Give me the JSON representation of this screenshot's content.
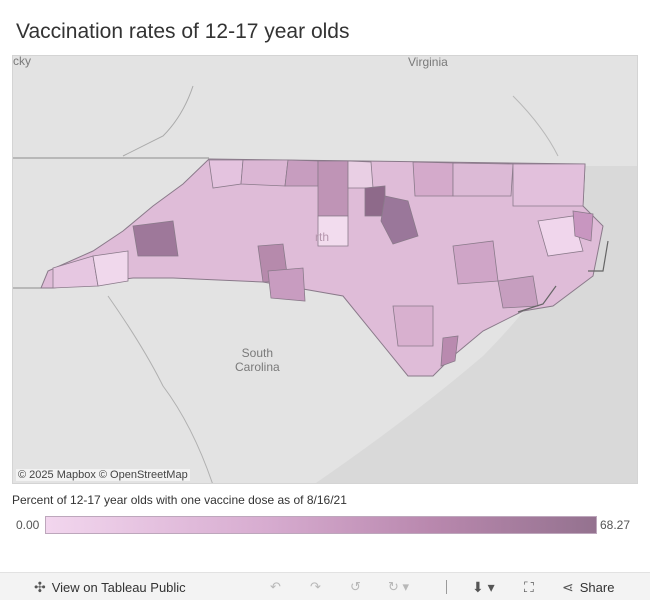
{
  "header": {
    "title": "Vaccination rates of 12-17 year olds"
  },
  "map": {
    "labels": {
      "kentucky_partial": "cky",
      "virginia": "Virginia",
      "north_carolina_partial": "rth",
      "south_carolina": "South\nCarolina"
    },
    "credits": "© 2025 Mapbox  © OpenStreetMap",
    "colors": {
      "background": "#e3e3e3",
      "state_border": "#9a9a9a",
      "county_border": "#8a7a8a",
      "scale_low": "#f2d6ee",
      "scale_high": "#94728f"
    }
  },
  "legend": {
    "title": "Percent of 12-17 year olds with one vaccine dose as of 8/16/21",
    "min": "0.00",
    "max": "68.27"
  },
  "footer": {
    "view_on_tableau": "View on Tableau Public",
    "share": "Share",
    "icons": [
      "tableau-icon",
      "undo-icon",
      "redo-icon",
      "revert-icon",
      "refresh-icon",
      "download-icon",
      "fullscreen-icon",
      "share-icon"
    ]
  }
}
